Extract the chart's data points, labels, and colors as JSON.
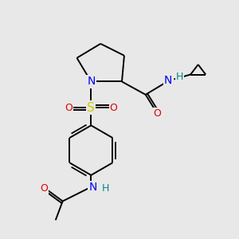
{
  "background_color": "#e8e8e8",
  "figsize": [
    3.0,
    3.0
  ],
  "dpi": 100,
  "bond_color": "#000000",
  "bond_lw": 1.4,
  "colors": {
    "N": "#0000ee",
    "O": "#dd0000",
    "S": "#cccc00",
    "H": "#008888"
  },
  "font": "DejaVu Sans",
  "fontsize": 9
}
